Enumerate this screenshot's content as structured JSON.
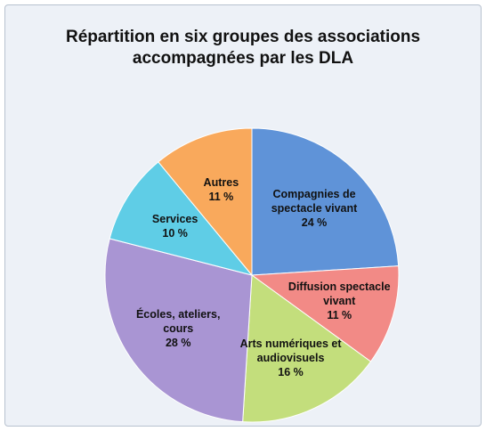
{
  "chart_data": {
    "type": "pie",
    "title": "Répartition en six groupes des associations accompagnées par les DLA",
    "categories": [
      "Compagnies de spectacle vivant",
      "Diffusion spectacle vivant",
      "Arts numériques et audiovisuels",
      "Écoles, ateliers, cours",
      "Services",
      "Autres"
    ],
    "values": [
      24,
      11,
      16,
      28,
      10,
      11
    ],
    "value_labels": [
      "24 %",
      "11 %",
      "16 %",
      "28 %",
      "10 %",
      "11 %"
    ],
    "colors": [
      "#5f93d8",
      "#f28a86",
      "#c3de7c",
      "#a995d3",
      "#5fcde6",
      "#f9a95c"
    ]
  }
}
